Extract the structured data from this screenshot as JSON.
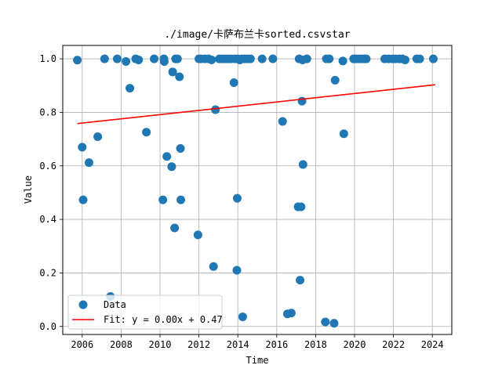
{
  "chart_data": {
    "type": "scatter",
    "title": "./image/卡萨布兰卡sorted.csvstar",
    "xlabel": "Time",
    "ylabel": "Value",
    "xlim": [
      2005.0,
      2025.0
    ],
    "ylim": [
      -0.03,
      1.05
    ],
    "xticks": [
      2006,
      2008,
      2010,
      2012,
      2014,
      2016,
      2018,
      2020,
      2022,
      2024
    ],
    "yticks": [
      0.0,
      0.2,
      0.4,
      0.6,
      0.8,
      1.0
    ],
    "xtick_labels": [
      "2006",
      "2008",
      "2010",
      "2012",
      "2014",
      "2016",
      "2018",
      "2020",
      "2022",
      "2024"
    ],
    "ytick_labels": [
      "0.0",
      "0.2",
      "0.4",
      "0.6",
      "0.8",
      "1.0"
    ],
    "grid": true,
    "legend_position": "lower-left",
    "colors": {
      "data": "#1f77b4",
      "fit": "#ff0000",
      "grid": "#b0b0b0"
    },
    "series": [
      {
        "name": "Data",
        "kind": "scatter",
        "points": [
          [
            2005.75,
            0.995
          ],
          [
            2006.0,
            0.67
          ],
          [
            2006.05,
            0.473
          ],
          [
            2006.35,
            0.612
          ],
          [
            2006.8,
            0.709
          ],
          [
            2007.15,
            1.0
          ],
          [
            2007.45,
            0.112
          ],
          [
            2007.8,
            1.0
          ],
          [
            2008.25,
            0.99
          ],
          [
            2008.45,
            0.89
          ],
          [
            2008.75,
            1.0
          ],
          [
            2008.9,
            0.996
          ],
          [
            2009.3,
            0.726
          ],
          [
            2009.7,
            1.0
          ],
          [
            2010.15,
            0.473
          ],
          [
            2010.2,
            1.0
          ],
          [
            2010.22,
            0.99
          ],
          [
            2010.35,
            0.635
          ],
          [
            2010.6,
            0.597
          ],
          [
            2010.65,
            0.951
          ],
          [
            2010.75,
            0.368
          ],
          [
            2010.8,
            1.0
          ],
          [
            2010.9,
            1.0
          ],
          [
            2011.0,
            0.933
          ],
          [
            2011.05,
            0.665
          ],
          [
            2011.07,
            0.473
          ],
          [
            2011.95,
            0.342
          ],
          [
            2012.0,
            1.0
          ],
          [
            2012.1,
            1.0
          ],
          [
            2012.3,
            1.0
          ],
          [
            2012.5,
            1.0
          ],
          [
            2012.65,
            0.996
          ],
          [
            2012.75,
            0.224
          ],
          [
            2012.85,
            0.81
          ],
          [
            2013.05,
            1.0
          ],
          [
            2013.2,
            1.0
          ],
          [
            2013.35,
            1.0
          ],
          [
            2013.5,
            1.0
          ],
          [
            2013.65,
            1.0
          ],
          [
            2013.8,
            0.911
          ],
          [
            2013.85,
            1.0
          ],
          [
            2013.95,
            0.21
          ],
          [
            2013.97,
            0.479
          ],
          [
            2014.0,
            1.0
          ],
          [
            2014.1,
            0.996
          ],
          [
            2014.2,
            1.0
          ],
          [
            2014.25,
            0.036
          ],
          [
            2014.35,
            1.0
          ],
          [
            2014.5,
            1.0
          ],
          [
            2014.65,
            1.0
          ],
          [
            2015.25,
            1.0
          ],
          [
            2015.8,
            1.0
          ],
          [
            2016.3,
            0.766
          ],
          [
            2016.55,
            0.047
          ],
          [
            2016.75,
            0.05
          ],
          [
            2017.1,
            0.447
          ],
          [
            2017.15,
            1.0
          ],
          [
            2017.2,
            0.173
          ],
          [
            2017.25,
            0.447
          ],
          [
            2017.3,
            0.842
          ],
          [
            2017.33,
            0.996
          ],
          [
            2017.35,
            0.605
          ],
          [
            2017.55,
            1.0
          ],
          [
            2018.5,
            0.017
          ],
          [
            2018.55,
            1.0
          ],
          [
            2018.7,
            1.0
          ],
          [
            2018.95,
            0.012
          ],
          [
            2019.0,
            0.92
          ],
          [
            2019.4,
            0.992
          ],
          [
            2019.45,
            0.72
          ],
          [
            2019.95,
            1.0
          ],
          [
            2020.05,
            1.0
          ],
          [
            2020.2,
            1.0
          ],
          [
            2020.35,
            1.0
          ],
          [
            2020.5,
            1.0
          ],
          [
            2020.6,
            1.0
          ],
          [
            2021.55,
            1.0
          ],
          [
            2021.75,
            1.0
          ],
          [
            2021.95,
            1.0
          ],
          [
            2022.1,
            1.0
          ],
          [
            2022.3,
            1.0
          ],
          [
            2022.45,
            1.0
          ],
          [
            2022.6,
            0.996
          ],
          [
            2023.2,
            1.0
          ],
          [
            2023.35,
            1.0
          ],
          [
            2024.05,
            1.0
          ]
        ]
      },
      {
        "name": "Fit: y = 0.00x + 0.47",
        "kind": "line",
        "points": [
          [
            2005.75,
            0.758
          ],
          [
            2024.15,
            0.903
          ]
        ]
      }
    ]
  }
}
